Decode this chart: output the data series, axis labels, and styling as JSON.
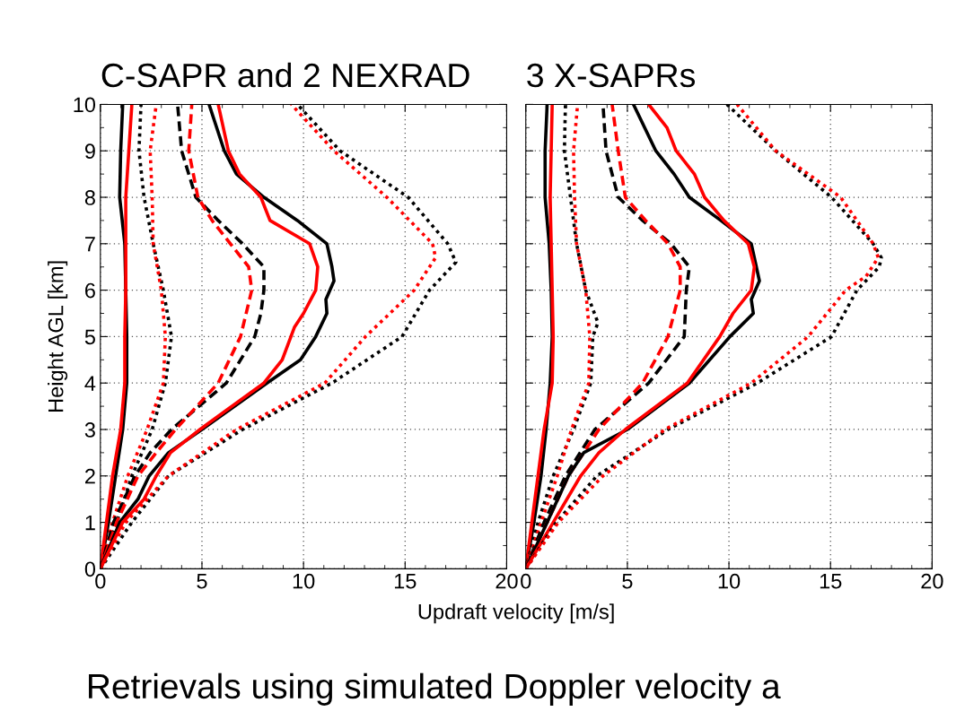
{
  "chart_data": [
    {
      "type": "line",
      "title": "C-SAPR and 2 NEXRAD",
      "xlabel": "Updraft velocity [m/s]",
      "ylabel": "Height AGL [km]",
      "annotations": [
        "Retrievals using simulated Doppler velocity a"
      ],
      "xlim": [
        0,
        20
      ],
      "xticks": [
        0,
        5,
        10,
        15,
        20
      ],
      "ylim": [
        0,
        10
      ],
      "yticks": [
        0,
        1,
        2,
        3,
        4,
        5,
        6,
        7,
        8,
        9,
        10
      ],
      "grid": true,
      "series": [
        {
          "color": "#000000",
          "line_style": "solid",
          "x": [
            0,
            0.4,
            0.75,
            1.1,
            1.3,
            1.3,
            1.25,
            1.2,
            0.95,
            1.0,
            1.1
          ],
          "values": [
            0,
            1,
            2,
            3,
            4,
            5,
            6,
            7,
            8,
            9,
            10
          ]
        },
        {
          "color": "#ff0000",
          "line_style": "solid",
          "x": [
            0,
            0.3,
            0.6,
            1.0,
            1.2,
            1.2,
            1.25,
            1.25,
            1.25,
            1.4,
            1.55
          ],
          "values": [
            0,
            1,
            2,
            3,
            4,
            5,
            6,
            7,
            8,
            9,
            10
          ]
        },
        {
          "color": "#000000",
          "line_style": "dotted",
          "x": [
            0,
            0.8,
            1.55,
            2.55,
            3.2,
            3.5,
            3.1,
            2.6,
            2.15,
            1.9,
            2.0
          ],
          "values": [
            0,
            1,
            2,
            3,
            4,
            5,
            6,
            7,
            8,
            9,
            10
          ]
        },
        {
          "color": "#ff0000",
          "line_style": "dotted",
          "x": [
            0,
            0.6,
            1.35,
            2.3,
            3.1,
            3.2,
            3.0,
            2.6,
            2.55,
            2.45,
            2.75
          ],
          "values": [
            0,
            1,
            2,
            3,
            4,
            5,
            6,
            7,
            8,
            9,
            10
          ]
        },
        {
          "color": "#000000",
          "line_style": "dashed",
          "x": [
            0,
            0.65,
            1.7,
            2.45,
            3.5,
            6.2,
            7.6,
            7.9,
            8.05,
            8.05,
            7.0,
            5.8,
            4.7,
            4.0,
            3.8
          ],
          "values": [
            0,
            1,
            2,
            2.5,
            3,
            4,
            5,
            5.5,
            6,
            6.5,
            7,
            7.5,
            8,
            9,
            10
          ]
        },
        {
          "color": "#ff0000",
          "line_style": "dashed",
          "x": [
            0,
            0.8,
            1.85,
            2.75,
            3.7,
            5.8,
            6.9,
            7.45,
            7.3,
            6.4,
            5.5,
            4.8,
            4.35,
            4.5
          ],
          "values": [
            0,
            1,
            2,
            2.5,
            3,
            4,
            5,
            6,
            6.5,
            7,
            7.5,
            8,
            9,
            10
          ]
        },
        {
          "color": "#000000",
          "line_style": "solid",
          "x": [
            0,
            0.95,
            1.85,
            2.4,
            3.35,
            5.0,
            8.2,
            9.85,
            10.6,
            11.15,
            11.1,
            11.5,
            11.4,
            11.15,
            9.7,
            8.05,
            6.7,
            6.1,
            5.35
          ],
          "values": [
            0,
            1,
            1.5,
            2,
            2.5,
            3,
            4,
            4.5,
            5,
            5.5,
            5.8,
            6.2,
            6.5,
            7,
            7.5,
            8,
            8.5,
            9,
            10
          ]
        },
        {
          "color": "#ff0000",
          "line_style": "solid",
          "x": [
            0,
            1.1,
            2.15,
            2.75,
            3.45,
            4.9,
            8.05,
            8.95,
            9.55,
            10.0,
            10.6,
            10.7,
            10.3,
            8.35,
            7.9,
            6.85,
            6.3,
            5.8
          ],
          "values": [
            0,
            1,
            1.5,
            2,
            2.5,
            3,
            4,
            4.5,
            5.2,
            5.5,
            6,
            6.5,
            7,
            7.5,
            8,
            8.5,
            9,
            10
          ]
        },
        {
          "color": "#000000",
          "line_style": "dotted",
          "x": [
            0,
            1.55,
            3.35,
            7.0,
            11.4,
            14.85,
            16.2,
            17.5,
            17.1,
            15.15,
            11.8,
            9.7
          ],
          "values": [
            0,
            1,
            2,
            3,
            4,
            5,
            6,
            6.6,
            7,
            8,
            9,
            10
          ]
        },
        {
          "color": "#ff0000",
          "line_style": "dotted",
          "x": [
            0,
            1.25,
            3.35,
            6.7,
            11.05,
            13.05,
            15.45,
            16.2,
            16.5,
            16.35,
            14.1,
            11.5,
            9.4
          ],
          "values": [
            0,
            1,
            2,
            3,
            4,
            5,
            6,
            6.5,
            6.7,
            7,
            8,
            9,
            10
          ]
        }
      ]
    },
    {
      "type": "line",
      "title": "3 X-SAPRs",
      "xlim": [
        0,
        20
      ],
      "xticks": [
        0,
        5,
        10,
        15,
        20
      ],
      "ylim": [
        0,
        10
      ],
      "yticks": [
        0,
        1,
        2,
        3,
        4,
        5,
        6,
        7,
        8,
        9,
        10
      ],
      "grid": true,
      "tick_labels": "x",
      "series": [
        {
          "color": "#000000",
          "line_style": "solid",
          "x": [
            0,
            0.4,
            0.75,
            1.0,
            1.2,
            1.3,
            1.25,
            1.15,
            0.95,
            0.95,
            1.05
          ],
          "values": [
            0,
            1,
            2,
            3,
            4,
            5,
            6,
            7,
            8,
            9,
            10
          ]
        },
        {
          "color": "#ff0000",
          "line_style": "solid",
          "x": [
            0,
            0.3,
            0.6,
            0.9,
            1.3,
            1.35,
            1.3,
            1.25,
            1.2,
            1.25,
            1.3
          ],
          "values": [
            0,
            1,
            2,
            3,
            4,
            5,
            6,
            7,
            8,
            9,
            10
          ]
        },
        {
          "color": "#000000",
          "line_style": "dotted",
          "x": [
            0,
            0.6,
            1.35,
            2.35,
            3.2,
            3.3,
            3.55,
            2.95,
            2.5,
            2.2,
            1.9,
            1.95
          ],
          "values": [
            0,
            1,
            2,
            3,
            4,
            5,
            5.3,
            6,
            7,
            8,
            9,
            10
          ]
        },
        {
          "color": "#ff0000",
          "line_style": "dotted",
          "x": [
            0,
            0.75,
            1.55,
            2.25,
            3.1,
            3.15,
            2.95,
            2.5,
            2.4,
            2.35,
            2.55
          ],
          "values": [
            0,
            1,
            2,
            3,
            4,
            5,
            6,
            7,
            8,
            9,
            10
          ]
        },
        {
          "color": "#000000",
          "line_style": "dashed",
          "x": [
            0,
            0.9,
            1.95,
            3.4,
            6.05,
            7.8,
            7.9,
            8.05,
            7.15,
            5.75,
            4.55,
            3.95,
            3.8
          ],
          "values": [
            0,
            1,
            2,
            3,
            4,
            5,
            6,
            6.5,
            7,
            7.5,
            8,
            9,
            10
          ]
        },
        {
          "color": "#ff0000",
          "line_style": "dashed",
          "x": [
            0,
            1.05,
            2.1,
            3.6,
            5.75,
            7.0,
            7.6,
            7.6,
            7.0,
            5.9,
            4.9,
            4.55,
            4.25
          ],
          "values": [
            0,
            1,
            2,
            3,
            4,
            5,
            6,
            6.5,
            7,
            7.5,
            8,
            9,
            10
          ]
        },
        {
          "color": "#000000",
          "line_style": "solid",
          "x": [
            0,
            1.05,
            2.1,
            2.85,
            5.0,
            8.05,
            10.05,
            11.2,
            11.1,
            11.5,
            11.1,
            9.6,
            8.05,
            7.3,
            6.4,
            5.3
          ],
          "values": [
            0,
            1,
            2,
            2.5,
            3,
            4,
            5,
            5.5,
            5.8,
            6.2,
            7,
            7.5,
            8,
            8.5,
            9,
            10
          ]
        },
        {
          "color": "#ff0000",
          "line_style": "solid",
          "x": [
            0,
            1.35,
            2.7,
            3.6,
            4.9,
            7.95,
            9.55,
            10.2,
            11.1,
            11.25,
            10.95,
            9.75,
            8.8,
            8.3,
            7.4,
            6.95,
            6.05
          ],
          "values": [
            0,
            1,
            2,
            2.5,
            3,
            4,
            5,
            5.5,
            6,
            6.5,
            7,
            7.5,
            8,
            8.5,
            9,
            9.5,
            10
          ]
        },
        {
          "color": "#000000",
          "line_style": "dotted",
          "x": [
            0,
            1.5,
            3.5,
            7.0,
            11.4,
            15.05,
            16.3,
            17.4,
            17.5,
            17.1,
            15.05,
            12.3,
            9.9
          ],
          "values": [
            0,
            1,
            2,
            3,
            4,
            5,
            6,
            6.5,
            6.7,
            7,
            8,
            9,
            10
          ]
        },
        {
          "color": "#ff0000",
          "line_style": "dotted",
          "x": [
            0,
            1.6,
            3.8,
            6.85,
            11.1,
            13.9,
            15.75,
            16.75,
            17.35,
            17.1,
            15.5,
            12.3,
            10.4
          ],
          "values": [
            0,
            1,
            2,
            3,
            4,
            5,
            6,
            6.3,
            6.7,
            7,
            8,
            9,
            10
          ]
        }
      ]
    }
  ]
}
